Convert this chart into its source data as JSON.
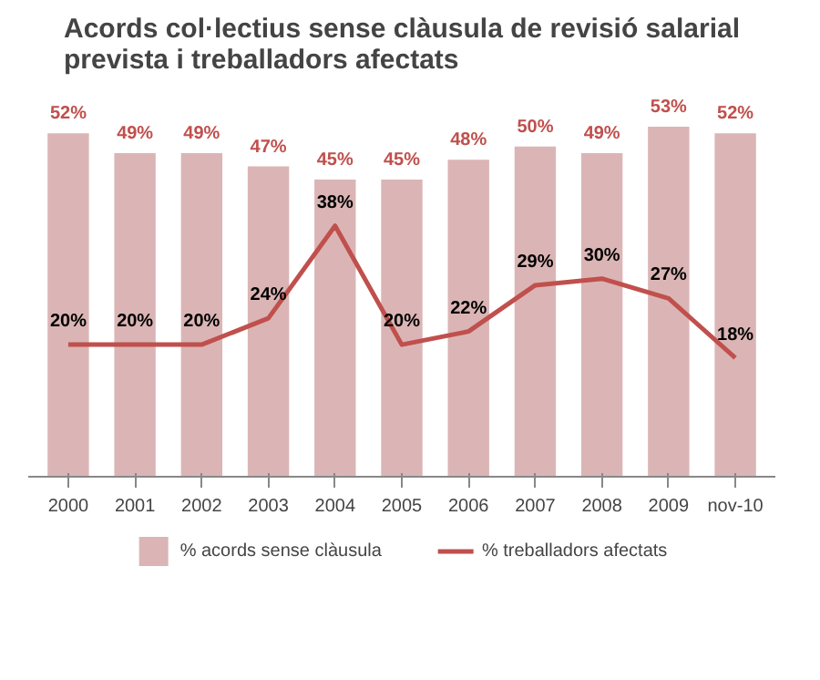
{
  "chart_data": {
    "type": "bar",
    "title": "Acords col·lectius sense clàusula de revisió salarial prevista i treballadors afectats",
    "categories": [
      "2000",
      "2001",
      "2002",
      "2003",
      "2004",
      "2005",
      "2006",
      "2007",
      "2008",
      "2009",
      "nov-10"
    ],
    "series": [
      {
        "name": "% acords sense clàusula",
        "type": "bar",
        "color": "#dbb5b5",
        "values": [
          52,
          49,
          49,
          47,
          45,
          45,
          48,
          50,
          49,
          53,
          52
        ],
        "value_labels": [
          "52%",
          "49%",
          "49%",
          "47%",
          "45%",
          "45%",
          "48%",
          "50%",
          "49%",
          "53%",
          "52%"
        ]
      },
      {
        "name": "% treballadors afectats",
        "type": "line",
        "color": "#c0504d",
        "values": [
          20,
          20,
          20,
          24,
          38,
          20,
          22,
          29,
          30,
          27,
          18
        ],
        "value_labels": [
          "20%",
          "20%",
          "20%",
          "24%",
          "38%",
          "20%",
          "22%",
          "29%",
          "30%",
          "27%",
          "18%"
        ]
      }
    ],
    "legend": "bottom",
    "grid": false
  }
}
